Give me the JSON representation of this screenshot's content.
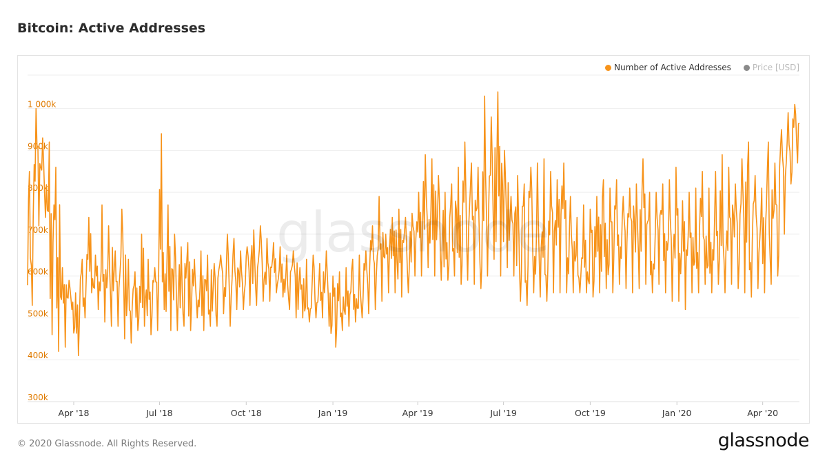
{
  "page": {
    "title": "Bitcoin: Active Addresses",
    "footer": "© 2020 Glassnode. All Rights Reserved.",
    "brand": "glassnode",
    "watermark": "glassnode"
  },
  "legend": {
    "items": [
      {
        "label": "Number of Active Addresses",
        "color": "#f7931a",
        "active": true
      },
      {
        "label": "Price [USD]",
        "color": "#8a8a8a",
        "active": false
      }
    ]
  },
  "colors": {
    "series": "#f7931a",
    "axis_text": "#e07b00",
    "x_text": "#333333",
    "grid": "#eeeeee"
  },
  "chart_data": {
    "type": "line",
    "title": "Bitcoin: Active Addresses",
    "xlabel": "",
    "ylabel": "",
    "y_ticks": [
      "300k",
      "400k",
      "500k",
      "600k",
      "700k",
      "800k",
      "900k",
      "1 000k"
    ],
    "y_tick_values": [
      300000,
      400000,
      500000,
      600000,
      700000,
      800000,
      900000,
      1000000
    ],
    "ylim": [
      300000,
      1080000
    ],
    "x_ticks": [
      "Apr '18",
      "Jul '18",
      "Oct '18",
      "Jan '19",
      "Apr '19",
      "Jul '19",
      "Oct '19",
      "Jan '20",
      "Apr '20"
    ],
    "x_tick_dates": [
      "2018-04-01",
      "2018-07-01",
      "2018-10-01",
      "2019-01-01",
      "2019-04-01",
      "2019-07-01",
      "2019-10-01",
      "2020-01-01",
      "2020-04-01"
    ],
    "xlim": [
      "2018-02-11",
      "2020-05-10"
    ],
    "grid": true,
    "legend_position": "top-right",
    "series": [
      {
        "name": "Number of Active Addresses",
        "x": [
          "2018-02-11",
          "2018-02-18",
          "2018-02-25",
          "2018-03-04",
          "2018-03-11",
          "2018-03-18",
          "2018-03-25",
          "2018-04-01",
          "2018-04-08",
          "2018-04-15",
          "2018-04-22",
          "2018-04-29",
          "2018-05-06",
          "2018-05-13",
          "2018-05-20",
          "2018-05-27",
          "2018-06-03",
          "2018-06-10",
          "2018-06-17",
          "2018-06-24",
          "2018-07-01",
          "2018-07-08",
          "2018-07-15",
          "2018-07-22",
          "2018-07-29",
          "2018-08-05",
          "2018-08-12",
          "2018-08-19",
          "2018-08-26",
          "2018-09-02",
          "2018-09-09",
          "2018-09-16",
          "2018-09-23",
          "2018-09-30",
          "2018-10-07",
          "2018-10-14",
          "2018-10-21",
          "2018-10-28",
          "2018-11-04",
          "2018-11-11",
          "2018-11-18",
          "2018-11-25",
          "2018-12-02",
          "2018-12-09",
          "2018-12-16",
          "2018-12-23",
          "2018-12-30",
          "2019-01-06",
          "2019-01-13",
          "2019-01-20",
          "2019-01-27",
          "2019-02-03",
          "2019-02-10",
          "2019-02-17",
          "2019-02-24",
          "2019-03-03",
          "2019-03-10",
          "2019-03-17",
          "2019-03-24",
          "2019-03-31",
          "2019-04-07",
          "2019-04-14",
          "2019-04-21",
          "2019-04-28",
          "2019-05-05",
          "2019-05-12",
          "2019-05-19",
          "2019-05-26",
          "2019-06-02",
          "2019-06-09",
          "2019-06-16",
          "2019-06-23",
          "2019-06-30",
          "2019-07-07",
          "2019-07-14",
          "2019-07-21",
          "2019-07-28",
          "2019-08-04",
          "2019-08-11",
          "2019-08-18",
          "2019-08-25",
          "2019-09-01",
          "2019-09-08",
          "2019-09-15",
          "2019-09-22",
          "2019-09-29",
          "2019-10-06",
          "2019-10-13",
          "2019-10-20",
          "2019-10-27",
          "2019-11-03",
          "2019-11-10",
          "2019-11-17",
          "2019-11-24",
          "2019-12-01",
          "2019-12-08",
          "2019-12-15",
          "2019-12-22",
          "2019-12-29",
          "2020-01-05",
          "2020-01-12",
          "2020-01-19",
          "2020-01-26",
          "2020-02-02",
          "2020-02-09",
          "2020-02-16",
          "2020-02-23",
          "2020-03-01",
          "2020-03-08",
          "2020-03-15",
          "2020-03-22",
          "2020-03-29",
          "2020-04-05",
          "2020-04-12",
          "2020-04-19",
          "2020-04-26",
          "2020-05-03",
          "2020-05-10"
        ],
        "high": [
          850000,
          1000000,
          930000,
          920000,
          860000,
          620000,
          590000,
          560000,
          640000,
          740000,
          650000,
          770000,
          720000,
          660000,
          760000,
          640000,
          610000,
          700000,
          640000,
          620000,
          940000,
          770000,
          700000,
          670000,
          680000,
          640000,
          660000,
          650000,
          630000,
          650000,
          700000,
          690000,
          660000,
          670000,
          710000,
          720000,
          690000,
          680000,
          670000,
          650000,
          660000,
          620000,
          640000,
          650000,
          630000,
          660000,
          600000,
          610000,
          620000,
          640000,
          650000,
          660000,
          720000,
          790000,
          700000,
          740000,
          760000,
          740000,
          750000,
          800000,
          890000,
          880000,
          840000,
          800000,
          820000,
          860000,
          920000,
          870000,
          860000,
          1030000,
          980000,
          1040000,
          900000,
          790000,
          840000,
          820000,
          860000,
          870000,
          880000,
          850000,
          830000,
          870000,
          790000,
          740000,
          770000,
          760000,
          790000,
          830000,
          810000,
          830000,
          790000,
          810000,
          820000,
          880000,
          800000,
          800000,
          820000,
          830000,
          860000,
          780000,
          800000,
          810000,
          850000,
          810000,
          850000,
          890000,
          860000,
          820000,
          880000,
          920000,
          840000,
          810000,
          920000,
          870000,
          950000,
          990000,
          1010000,
          990000
        ],
        "low": [
          530000,
          720000,
          740000,
          460000,
          420000,
          430000,
          520000,
          410000,
          500000,
          560000,
          520000,
          490000,
          480000,
          480000,
          450000,
          440000,
          470000,
          480000,
          460000,
          470000,
          520000,
          470000,
          470000,
          480000,
          470000,
          500000,
          470000,
          480000,
          480000,
          510000,
          480000,
          520000,
          520000,
          530000,
          530000,
          540000,
          540000,
          560000,
          550000,
          520000,
          500000,
          500000,
          490000,
          500000,
          500000,
          480000,
          430000,
          470000,
          480000,
          490000,
          500000,
          510000,
          520000,
          540000,
          560000,
          560000,
          550000,
          560000,
          600000,
          600000,
          620000,
          600000,
          590000,
          590000,
          600000,
          580000,
          590000,
          580000,
          570000,
          600000,
          640000,
          600000,
          620000,
          600000,
          540000,
          530000,
          560000,
          550000,
          540000,
          560000,
          560000,
          560000,
          560000,
          560000,
          560000,
          550000,
          560000,
          570000,
          560000,
          580000,
          570000,
          560000,
          570000,
          580000,
          560000,
          580000,
          560000,
          540000,
          540000,
          520000,
          560000,
          560000,
          580000,
          560000,
          580000,
          560000,
          580000,
          570000,
          560000,
          550000,
          570000,
          560000,
          580000,
          600000,
          700000,
          820000,
          870000,
          860000
        ]
      }
    ]
  }
}
